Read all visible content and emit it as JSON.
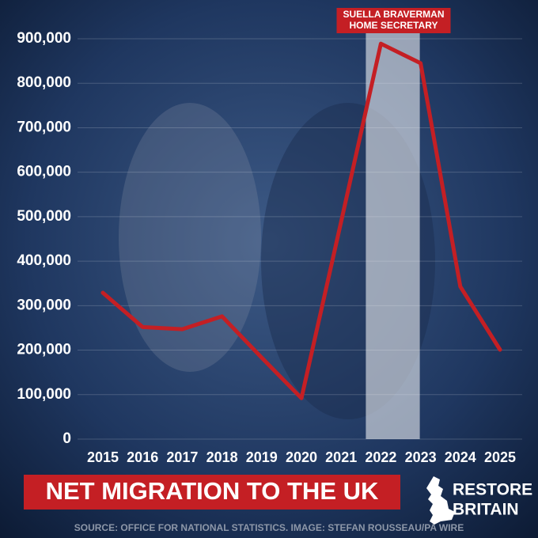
{
  "chart_data": {
    "type": "line",
    "title": "NET MIGRATION TO THE UK",
    "categories": [
      "2015",
      "2016",
      "2017",
      "2018",
      "2019",
      "2020",
      "2021",
      "2022",
      "2023",
      "2024",
      "2025"
    ],
    "values": [
      329000,
      252000,
      247000,
      276000,
      183000,
      92000,
      489000,
      889000,
      845000,
      343000,
      201000
    ],
    "color": "#c41f24",
    "ylim": [
      0,
      900000
    ],
    "yticks": [
      0,
      {
        "value": 100000,
        "label": "100,000"
      },
      {
        "value": 200000,
        "label": "200,000"
      },
      {
        "value": 300000,
        "label": "300,000"
      },
      {
        "value": 400000,
        "label": "400,000"
      },
      {
        "value": 500000,
        "label": "500,000"
      },
      {
        "value": 600000,
        "label": "600,000"
      },
      {
        "value": 700000,
        "label": "700,000"
      },
      {
        "value": 800000,
        "label": "800,000"
      },
      {
        "value": 900000,
        "label": "900,000"
      }
    ],
    "grid": true,
    "highlight": {
      "from": "2022",
      "to": "2023",
      "label": [
        "SUELLA BRAVERMAN",
        "HOME SECRETARY"
      ]
    },
    "logo": [
      "RESTORE",
      "BRITAIN"
    ],
    "source": "SOURCE: OFFICE FOR NATIONAL STATISTICS. IMAGE: STEFAN ROUSSEAU/PA WIRE"
  }
}
